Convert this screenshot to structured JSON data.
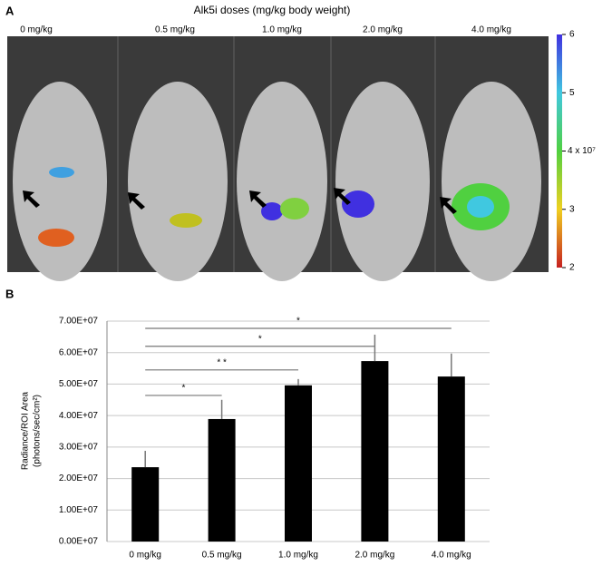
{
  "panel_a": {
    "label": "A",
    "title": "Alk5i doses (mg/kg body weight)",
    "image_labels": [
      "0 mg/kg",
      "0.5 mg/kg",
      "1.0 mg/kg",
      "2.0 mg/kg",
      "4.0 mg/kg"
    ],
    "colorbar": {
      "lim": [
        2,
        6
      ],
      "ticks": [
        2,
        3,
        {
          "value": 4,
          "label": "4 x 10⁷"
        },
        5,
        6
      ]
    }
  },
  "chart_data": {
    "type": "bar",
    "label": "B",
    "ylabel": [
      "Radiance/ROI Area",
      "(photons/sec/cm²)"
    ],
    "categories": [
      "0 mg/kg",
      "0.5 mg/kg",
      "1.0 mg/kg",
      "2.0 mg/kg",
      "4.0 mg/kg"
    ],
    "values": [
      23600000,
      38900000,
      49600000,
      57300000,
      52400000
    ],
    "errors": [
      5200000,
      6100000,
      2000000,
      8400000,
      7300000
    ],
    "color": "#000000",
    "ylim": [
      0,
      70000000
    ],
    "yticks": [
      {
        "value": 0,
        "label": "0.00E+07"
      },
      {
        "value": 10000000,
        "label": "1.00E+07"
      },
      {
        "value": 20000000,
        "label": "2.00E+07"
      },
      {
        "value": 30000000,
        "label": "3.00E+07"
      },
      {
        "value": 40000000,
        "label": "4.00E+07"
      },
      {
        "value": 50000000,
        "label": "5.00E+07"
      },
      {
        "value": 60000000,
        "label": "6.00E+07"
      },
      {
        "value": 70000000,
        "label": "7.00E+07"
      }
    ],
    "grid": true,
    "annotations": [
      {
        "label": "*",
        "from": "0 mg/kg",
        "to": "0.5 mg/kg",
        "y": 46400000
      },
      {
        "label": "* *",
        "from": "0 mg/kg",
        "to": "1.0 mg/kg",
        "y": 54500000
      },
      {
        "label": "*",
        "from": "0 mg/kg",
        "to": "2.0 mg/kg",
        "y": 62000000
      },
      {
        "label": "*",
        "from": "0 mg/kg",
        "to": "4.0 mg/kg",
        "y": 67700000
      }
    ]
  }
}
